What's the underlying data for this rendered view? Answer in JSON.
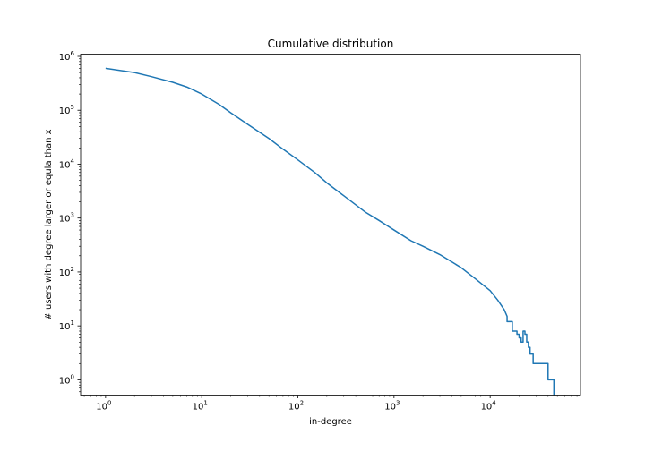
{
  "chart_data": {
    "type": "line",
    "title": "Cumulative distribution",
    "xlabel": "in-degree",
    "ylabel": "# users with degree larger or equla than x",
    "xscale": "log",
    "yscale": "log",
    "xlim": [
      0.55,
      87000
    ],
    "ylim": [
      0.52,
      1100000
    ],
    "grid": false,
    "line_color": "#1f77b4",
    "x_ticks": [
      {
        "value": 1,
        "base": "10",
        "exp": "0"
      },
      {
        "value": 10,
        "base": "10",
        "exp": "1"
      },
      {
        "value": 100,
        "base": "10",
        "exp": "2"
      },
      {
        "value": 1000,
        "base": "10",
        "exp": "3"
      },
      {
        "value": 10000,
        "base": "10",
        "exp": "4"
      }
    ],
    "y_ticks": [
      {
        "value": 1,
        "base": "10",
        "exp": "0"
      },
      {
        "value": 10,
        "base": "10",
        "exp": "1"
      },
      {
        "value": 100,
        "base": "10",
        "exp": "2"
      },
      {
        "value": 1000,
        "base": "10",
        "exp": "3"
      },
      {
        "value": 10000,
        "base": "10",
        "exp": "4"
      },
      {
        "value": 100000,
        "base": "10",
        "exp": "5"
      },
      {
        "value": 1000000,
        "base": "10",
        "exp": "6"
      }
    ],
    "series": [
      {
        "x": [
          1,
          2,
          3,
          5,
          7,
          10,
          15,
          20,
          30,
          50,
          70,
          100,
          150,
          200,
          300,
          500,
          700,
          1000,
          1500,
          2000,
          3000,
          5000,
          7000,
          10000,
          12000,
          14000,
          15000,
          15000,
          17000,
          17000,
          19000,
          19000,
          20000,
          20000,
          21000,
          21000,
          22000,
          22000,
          23000,
          23000,
          24000,
          24000,
          25000,
          25000,
          26000,
          26000,
          28000,
          28000,
          40000,
          40000,
          46000,
          46000
        ],
        "y": [
          600000,
          500000,
          420000,
          330000,
          270000,
          200000,
          130000,
          90000,
          55000,
          30000,
          19000,
          12000,
          7000,
          4500,
          2600,
          1300,
          900,
          600,
          380,
          300,
          210,
          120,
          75,
          45,
          30,
          20,
          15,
          12,
          12,
          8,
          8,
          7,
          7,
          6,
          6,
          5,
          5,
          8,
          8,
          7,
          7,
          5,
          5,
          4,
          4,
          3,
          3,
          2,
          2,
          1,
          1,
          0.5
        ]
      }
    ]
  }
}
